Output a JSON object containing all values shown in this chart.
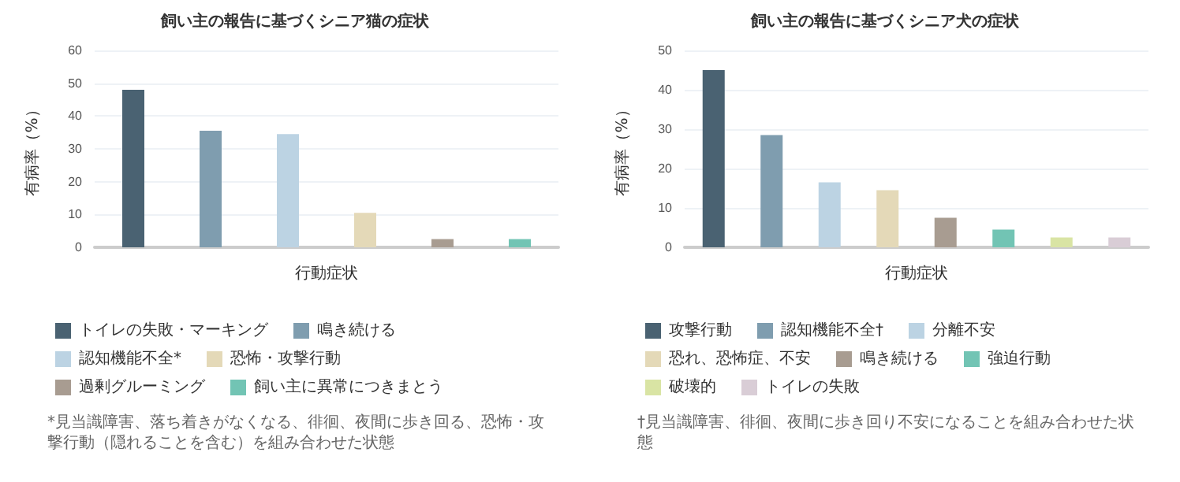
{
  "chart_data": [
    {
      "type": "bar",
      "title": "飼い主の報告に基づくシニア猫の症状",
      "xlabel": "行動症状",
      "ylabel": "有病率（%）",
      "categories": [
        null,
        null,
        null,
        null,
        null,
        null
      ],
      "ylim": [
        0,
        60
      ],
      "yticks": [
        0,
        10,
        20,
        30,
        40,
        50,
        60
      ],
      "grid": "y",
      "legend": "bottom",
      "series": [
        {
          "name": "トイレの失敗・マーキング",
          "color": "#4a6272",
          "values": [
            48,
            null,
            null,
            null,
            null,
            null
          ]
        },
        {
          "name": "鳴き続ける",
          "color": "#7f9daf",
          "values": [
            null,
            35.5,
            null,
            null,
            null,
            null
          ]
        },
        {
          "name": "認知機能不全*",
          "color": "#bcd3e3",
          "values": [
            null,
            null,
            34.5,
            null,
            null,
            null
          ]
        },
        {
          "name": "恐怖・攻撃行動",
          "color": "#e4d9b8",
          "values": [
            null,
            null,
            null,
            10.5,
            null,
            null
          ]
        },
        {
          "name": "過剰グルーミング",
          "color": "#a89c91",
          "values": [
            null,
            null,
            null,
            null,
            2.5,
            null
          ]
        },
        {
          "name": "飼い主に異常につきまとう",
          "color": "#72c4b4",
          "values": [
            null,
            null,
            null,
            null,
            null,
            2.5
          ]
        }
      ],
      "annotations": [
        "*見当識障害、落ち着きがなくなる、徘徊、夜間に歩き回る、恐怖・攻撃行動（隠れることを含む）を組み合わせた状態"
      ]
    },
    {
      "type": "bar",
      "title": "飼い主の報告に基づくシニア犬の症状",
      "xlabel": "行動症状",
      "ylabel": "有病率（%）",
      "categories": [
        null,
        null,
        null,
        null,
        null,
        null,
        null,
        null
      ],
      "ylim": [
        0,
        50
      ],
      "yticks": [
        0,
        10,
        20,
        30,
        40,
        50
      ],
      "grid": "y",
      "legend": "bottom",
      "series": [
        {
          "name": "攻撃行動",
          "color": "#4a6272",
          "values": [
            45,
            null,
            null,
            null,
            null,
            null,
            null,
            null
          ]
        },
        {
          "name": "認知機能不全†",
          "color": "#7f9daf",
          "values": [
            null,
            28.5,
            null,
            null,
            null,
            null,
            null,
            null
          ]
        },
        {
          "name": "分離不安",
          "color": "#bcd3e3",
          "values": [
            null,
            null,
            16.5,
            null,
            null,
            null,
            null,
            null
          ]
        },
        {
          "name": "恐れ、恐怖症、不安",
          "color": "#e4d9b8",
          "values": [
            null,
            null,
            null,
            14.5,
            null,
            null,
            null,
            null
          ]
        },
        {
          "name": "鳴き続ける",
          "color": "#a89c91",
          "values": [
            null,
            null,
            null,
            null,
            7.5,
            null,
            null,
            null
          ]
        },
        {
          "name": "強迫行動",
          "color": "#72c4b4",
          "values": [
            null,
            null,
            null,
            null,
            null,
            4.5,
            null,
            null
          ]
        },
        {
          "name": "破壊的",
          "color": "#d9e4a4",
          "values": [
            null,
            null,
            null,
            null,
            null,
            null,
            2.5,
            null
          ]
        },
        {
          "name": "トイレの失敗",
          "color": "#d9cdd6",
          "values": [
            null,
            null,
            null,
            null,
            null,
            null,
            null,
            2.5
          ]
        }
      ],
      "annotations": [
        "†見当識障害、徘徊、夜間に歩き回り不安になることを組み合わせた状態"
      ]
    }
  ]
}
